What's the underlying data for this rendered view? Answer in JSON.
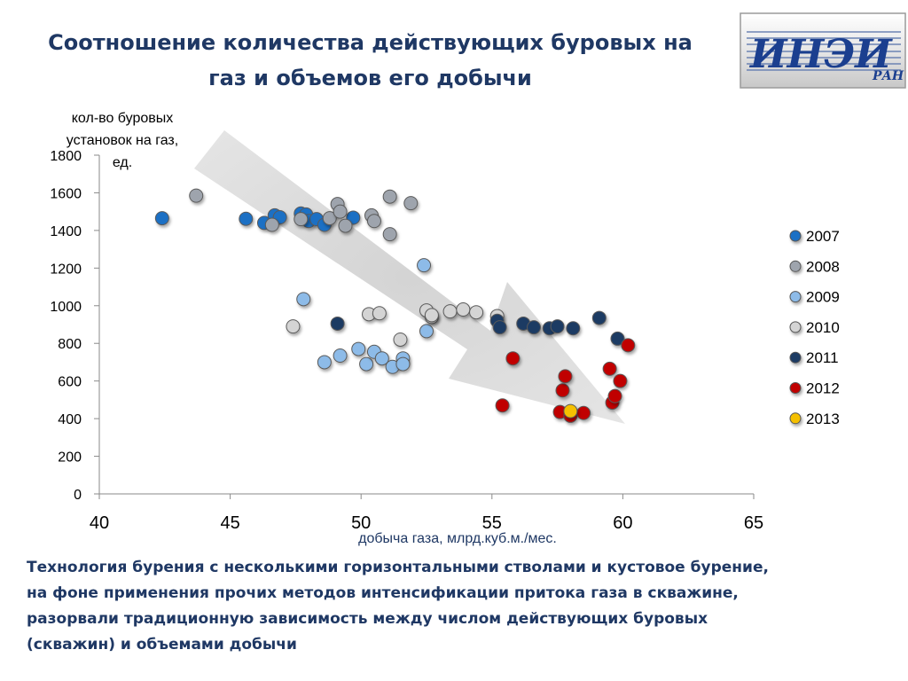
{
  "title_line1": "Соотношение количества действующих буровых на",
  "title_line2": "газ и объемов его добычи",
  "logo": {
    "text_main": "ИНЭИ",
    "text_sub": "РАН"
  },
  "footer": {
    "line1": "Технология бурения с несколькими горизонтальными стволами и кустовое бурение,",
    "line2": "на фоне применения прочих методов интенсификации притока газа в скважине,",
    "line3": "разорвали традиционную зависимость между числом действующих буровых",
    "line4": "(скважин) и объемами добычи"
  },
  "chart_data": {
    "type": "scatter",
    "ylabel_lines": [
      "кол-во буровых",
      "установок на газ,",
      "ед."
    ],
    "xlabel": "добыча газа, млрд.куб.м./мес.",
    "xlim": [
      40,
      65
    ],
    "ylim": [
      0,
      1800
    ],
    "x_ticks": [
      "40",
      "45",
      "50",
      "55",
      "60",
      "65"
    ],
    "y_ticks": [
      "0",
      "200",
      "400",
      "600",
      "800",
      "1000",
      "1200",
      "1400",
      "1600",
      "1800"
    ],
    "legend_position": "right",
    "grid": false,
    "series": [
      {
        "name": "2007",
        "color": "#1e6fc4",
        "points": [
          [
            42.4,
            1465
          ],
          [
            45.6,
            1462
          ],
          [
            46.3,
            1440
          ],
          [
            46.7,
            1480
          ],
          [
            46.9,
            1470
          ],
          [
            47.7,
            1490
          ],
          [
            47.9,
            1485
          ],
          [
            48.0,
            1450
          ],
          [
            48.3,
            1460
          ],
          [
            48.6,
            1430
          ],
          [
            49.7,
            1468
          ]
        ]
      },
      {
        "name": "2008",
        "color": "#9ea4ad",
        "points": [
          [
            43.7,
            1585
          ],
          [
            46.6,
            1430
          ],
          [
            47.7,
            1460
          ],
          [
            48.8,
            1465
          ],
          [
            49.1,
            1540
          ],
          [
            49.2,
            1500
          ],
          [
            49.4,
            1425
          ],
          [
            50.4,
            1480
          ],
          [
            50.5,
            1450
          ],
          [
            51.1,
            1380
          ],
          [
            51.1,
            1580
          ],
          [
            51.9,
            1545
          ]
        ]
      },
      {
        "name": "2009",
        "color": "#8dbbe8",
        "points": [
          [
            47.8,
            1035
          ],
          [
            48.6,
            700
          ],
          [
            49.2,
            735
          ],
          [
            49.9,
            770
          ],
          [
            50.2,
            690
          ],
          [
            50.5,
            755
          ],
          [
            50.8,
            720
          ],
          [
            51.2,
            675
          ],
          [
            51.6,
            720
          ],
          [
            51.6,
            690
          ],
          [
            52.4,
            1215
          ],
          [
            52.5,
            865
          ]
        ]
      },
      {
        "name": "2010",
        "color": "#d4d4d4",
        "points": [
          [
            47.4,
            890
          ],
          [
            50.3,
            955
          ],
          [
            50.7,
            960
          ],
          [
            51.5,
            820
          ],
          [
            52.5,
            975
          ],
          [
            52.7,
            940
          ],
          [
            52.7,
            950
          ],
          [
            53.4,
            970
          ],
          [
            53.9,
            980
          ],
          [
            54.4,
            965
          ],
          [
            55.2,
            945
          ]
        ]
      },
      {
        "name": "2011",
        "color": "#1f3a63",
        "points": [
          [
            49.1,
            905
          ],
          [
            55.2,
            920
          ],
          [
            55.3,
            885
          ],
          [
            56.2,
            905
          ],
          [
            56.6,
            885
          ],
          [
            57.2,
            880
          ],
          [
            57.5,
            890
          ],
          [
            58.1,
            880
          ],
          [
            59.1,
            935
          ],
          [
            59.8,
            825
          ]
        ]
      },
      {
        "name": "2012",
        "color": "#c00000",
        "points": [
          [
            55.4,
            470
          ],
          [
            55.8,
            720
          ],
          [
            57.6,
            435
          ],
          [
            57.7,
            550
          ],
          [
            57.8,
            625
          ],
          [
            58.0,
            415
          ],
          [
            58.5,
            430
          ],
          [
            59.5,
            665
          ],
          [
            59.6,
            485
          ],
          [
            59.7,
            520
          ],
          [
            59.9,
            600
          ],
          [
            60.2,
            790
          ]
        ]
      },
      {
        "name": "2013",
        "color": "#f5c000",
        "points": [
          [
            58.0,
            440
          ]
        ]
      }
    ]
  }
}
